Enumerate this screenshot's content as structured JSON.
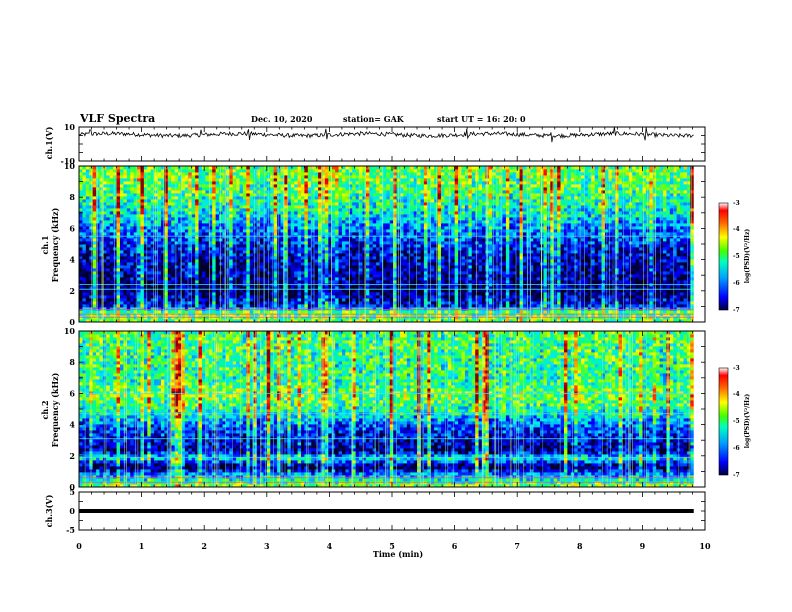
{
  "header": {
    "title": "VLF  Spectra",
    "date": "Dec. 10, 2020",
    "station": "station= GAK",
    "start": "start  UT  =   16: 20: 0"
  },
  "chart_data": [
    {
      "type": "line",
      "panel": "channel-1-voltage",
      "ylabel": "ch.1(V)",
      "yticks": [
        "10",
        "-10"
      ],
      "ylim": [
        -10,
        10
      ],
      "xlim": [
        0,
        10
      ],
      "baseline_v": 5.5,
      "noise_v": 1.2,
      "spike_times_min": [
        0.18,
        1.95,
        2.72,
        3.95,
        6.2,
        7.55,
        8.55,
        9.05
      ]
    },
    {
      "type": "heatmap",
      "panel": "channel-1-spectrogram",
      "ylabel": "ch.1\nFrequency (kHz)",
      "ylabel_lines": [
        "ch.1",
        "Frequency  (kHz)"
      ],
      "yticks": [
        "0",
        "2",
        "4",
        "6",
        "8",
        "10"
      ],
      "ylim_khz": [
        0,
        10
      ],
      "xlim_min": [
        0,
        9.82
      ],
      "log_psd_profile": [
        {
          "f": 0.0,
          "v": -4.6
        },
        {
          "f": 0.7,
          "v": -4.8
        },
        {
          "f": 1.0,
          "v": -6.2
        },
        {
          "f": 2.0,
          "v": -6.9
        },
        {
          "f": 3.0,
          "v": -6.6
        },
        {
          "f": 4.0,
          "v": -6.5
        },
        {
          "f": 5.0,
          "v": -6.2
        },
        {
          "f": 5.6,
          "v": -5.9
        },
        {
          "f": 6.5,
          "v": -5.5
        },
        {
          "f": 7.5,
          "v": -5.1
        },
        {
          "f": 8.5,
          "v": -4.8
        },
        {
          "f": 10.0,
          "v": -4.6
        }
      ],
      "bands_khz": [
        0.3,
        0.5,
        0.8,
        2.1,
        2.4,
        5.5
      ],
      "colorbar": {
        "label": "log(PSD)(V²/Hz)",
        "ticks": [
          "-3",
          "-4",
          "-5",
          "-6",
          "-7"
        ],
        "range": [
          -7,
          -3
        ]
      }
    },
    {
      "type": "heatmap",
      "panel": "channel-2-spectrogram",
      "ylabel": "ch.2\nFrequency (kHz)",
      "ylabel_lines": [
        "ch.2",
        "Frequency  (kHz)"
      ],
      "yticks": [
        "0",
        "2",
        "4",
        "6",
        "8",
        "10"
      ],
      "ylim_khz": [
        0,
        10
      ],
      "xlim_min": [
        0,
        9.82
      ],
      "log_psd_profile": [
        {
          "f": 0.0,
          "v": -4.4
        },
        {
          "f": 0.8,
          "v": -5.6
        },
        {
          "f": 1.3,
          "v": -6.9
        },
        {
          "f": 1.9,
          "v": -5.2
        },
        {
          "f": 2.3,
          "v": -6.6
        },
        {
          "f": 3.0,
          "v": -6.4
        },
        {
          "f": 4.0,
          "v": -5.9
        },
        {
          "f": 4.7,
          "v": -5.2
        },
        {
          "f": 5.4,
          "v": -4.8
        },
        {
          "f": 6.0,
          "v": -4.6
        },
        {
          "f": 7.0,
          "v": -5.0
        },
        {
          "f": 8.5,
          "v": -4.9
        },
        {
          "f": 10.0,
          "v": -4.8
        }
      ],
      "bands_khz": [
        0.3,
        0.6,
        1.9,
        3.1,
        4.7,
        6.0
      ],
      "colorbar": {
        "label": "log(PSD)(V²/Hz)",
        "ticks": [
          "-3",
          "-4",
          "-5",
          "-6",
          "-7"
        ],
        "range": [
          -7,
          -3
        ]
      }
    },
    {
      "type": "line",
      "panel": "channel-3-voltage",
      "ylabel": "ch.3(V)",
      "yticks": [
        "5",
        "0",
        "-5"
      ],
      "ylim": [
        -5,
        5
      ],
      "xlim": [
        0,
        9.82
      ],
      "constant_v": 0
    }
  ],
  "xaxis": {
    "label": "Time  (min)",
    "ticks": [
      "0",
      "1",
      "2",
      "3",
      "4",
      "5",
      "6",
      "7",
      "8",
      "9",
      "10"
    ],
    "range": [
      0,
      10
    ]
  },
  "colors": {
    "colormap": [
      "#000033",
      "#000090",
      "#0000ff",
      "#0070ff",
      "#00d0ff",
      "#00ff80",
      "#90ff00",
      "#ffff00",
      "#ff9000",
      "#ff0000",
      "#900000"
    ],
    "trace": "#000000"
  }
}
